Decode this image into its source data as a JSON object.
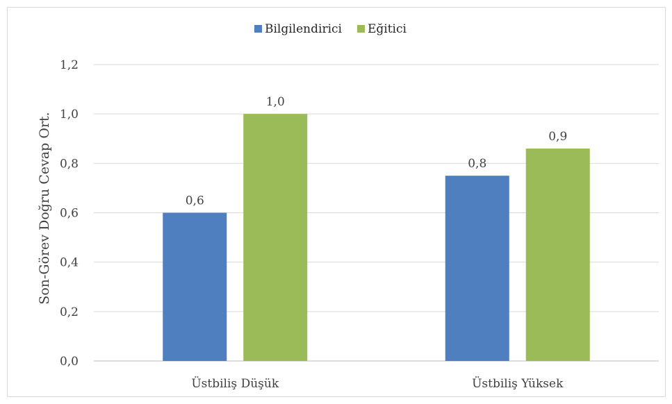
{
  "chart_data": {
    "type": "bar",
    "categories": [
      "Üstbiliş Düşük",
      "Üstbiliş Yüksek"
    ],
    "series": [
      {
        "name": "Bilgilendirici",
        "values": [
          0.6,
          0.75
        ],
        "labels": [
          "0,6",
          "0,8"
        ],
        "color": "#4f7fbe"
      },
      {
        "name": "Eğitici",
        "values": [
          1.0,
          0.86
        ],
        "labels": [
          "1,0",
          "0,9"
        ],
        "color": "#9bbb59"
      }
    ],
    "title": "",
    "xlabel": "",
    "ylabel": "Son-Görev Doğru Cevap Ort.",
    "ylim": [
      0,
      1.2
    ],
    "yticks": [
      0,
      0.2,
      0.4,
      0.6,
      0.8,
      1.0,
      1.2
    ],
    "ytick_labels": [
      "0,0",
      "0,2",
      "0,4",
      "0,6",
      "0,8",
      "1,0",
      "1,2"
    ],
    "grid": true,
    "legend_position": "top-center"
  }
}
